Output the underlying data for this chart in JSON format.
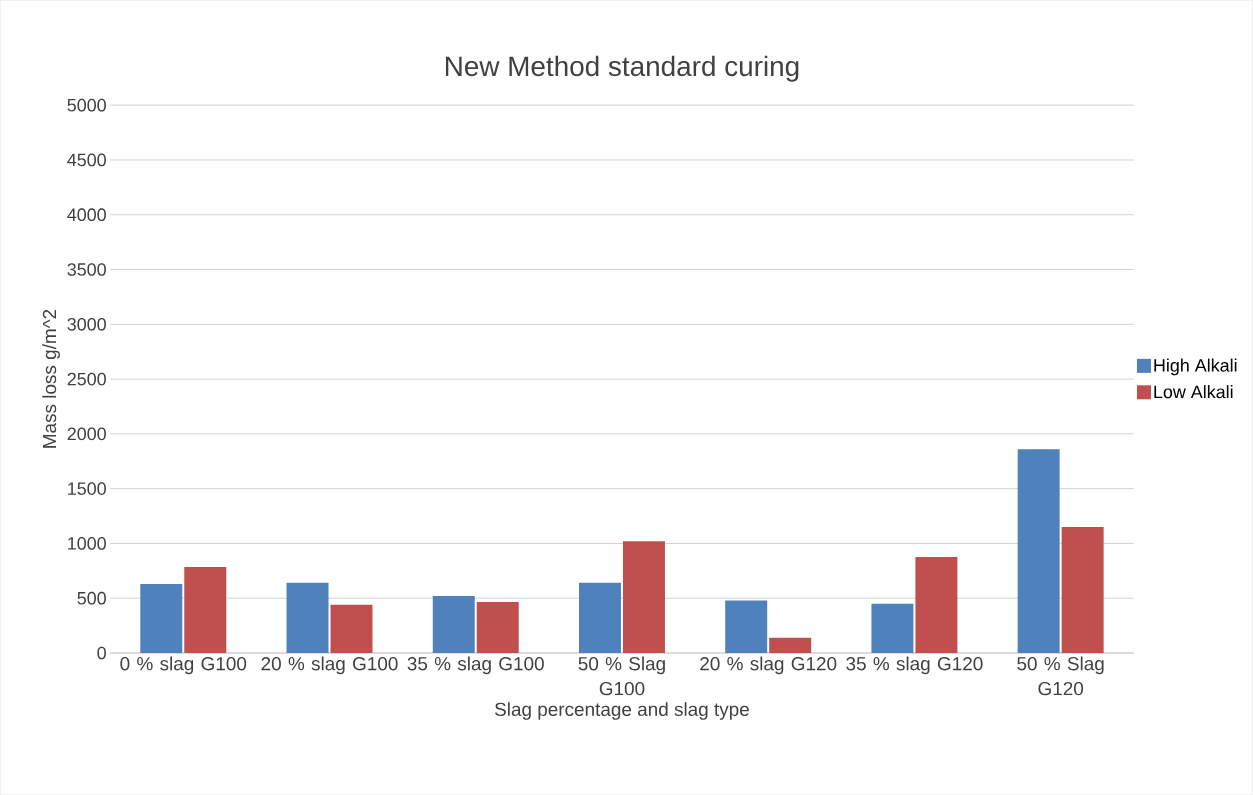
{
  "chart_data": {
    "type": "bar",
    "title": "New Method standard curing",
    "xlabel": "Slag percentage and slag type",
    "ylabel": "Mass loss g/m^2",
    "categories": [
      "0 % slag G100",
      "20 % slag G100",
      "35 % slag G100",
      "50 % Slag G100",
      "20 % slag G120",
      "35 % slag G120",
      "50 % Slag G120"
    ],
    "series": [
      {
        "name": "High Alkali",
        "color": "#4f81bd",
        "values": [
          630,
          640,
          520,
          640,
          480,
          450,
          1860
        ]
      },
      {
        "name": "Low Alkali",
        "color": "#c0504d",
        "values": [
          785,
          440,
          465,
          1020,
          140,
          876,
          1150
        ]
      }
    ],
    "ylim": [
      0,
      5000
    ],
    "yticks": [
      0,
      500,
      1000,
      1500,
      2000,
      2500,
      3000,
      3500,
      4000,
      4500,
      5000
    ],
    "grid": "y",
    "legend": "right"
  }
}
